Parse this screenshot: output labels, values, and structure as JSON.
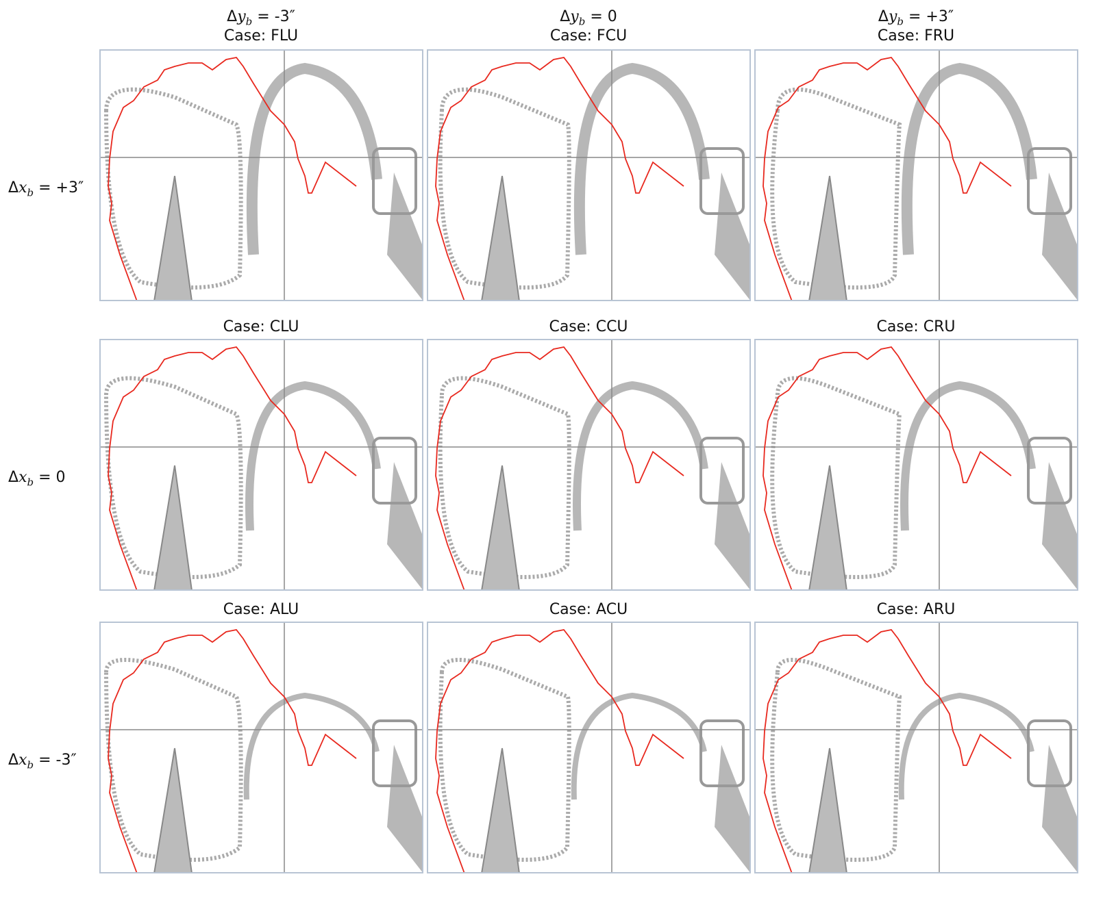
{
  "columns": [
    {
      "prefix": "Δ",
      "var": "y",
      "sub": "b",
      "suffix": " = -3″"
    },
    {
      "prefix": "Δ",
      "var": "y",
      "sub": "b",
      "suffix": " = 0"
    },
    {
      "prefix": "Δ",
      "var": "y",
      "sub": "b",
      "suffix": " = +3″"
    }
  ],
  "rows": [
    {
      "label": {
        "prefix": "Δ",
        "var": "x",
        "sub": "b",
        "suffix": " = +3″"
      },
      "cases": [
        "Case: FLU",
        "Case: FCU",
        "Case: FRU"
      ]
    },
    {
      "label": {
        "prefix": "Δ",
        "var": "x",
        "sub": "b",
        "suffix": " = 0"
      },
      "cases": [
        "Case: CLU",
        "Case: CCU",
        "Case: CRU"
      ]
    },
    {
      "label": {
        "prefix": "Δ",
        "var": "x",
        "sub": "b",
        "suffix": " = -3″"
      },
      "cases": [
        "Case: ALU",
        "Case: ACU",
        "Case: ARU"
      ]
    }
  ]
}
